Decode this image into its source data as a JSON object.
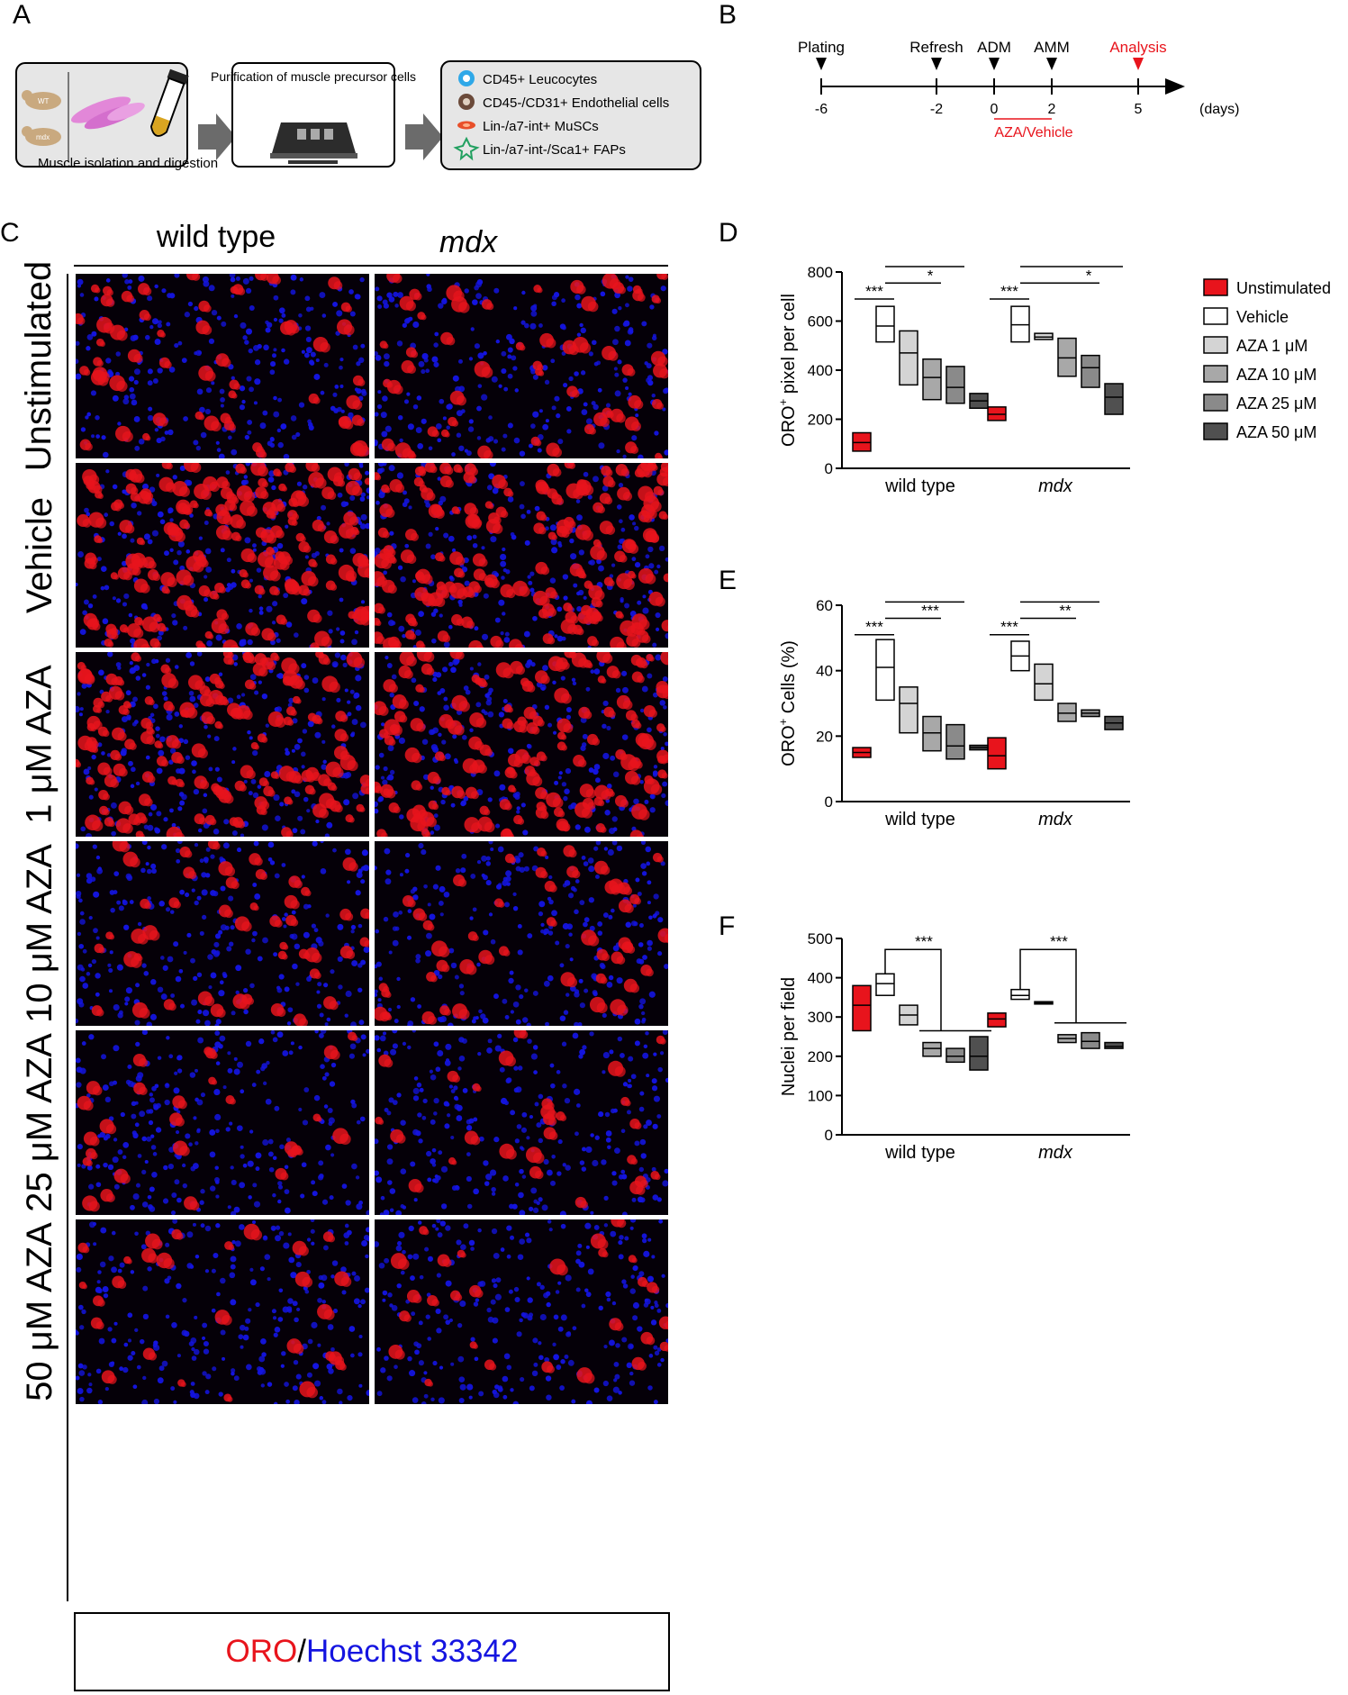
{
  "panel_letters": {
    "a": "A",
    "b": "B",
    "c": "C",
    "d": "D",
    "e": "E",
    "f": "F"
  },
  "panelA": {
    "mouse_wt": "WT",
    "mouse_mdx": "mdx",
    "step1_label": "Muscle isolation and digestion",
    "step2_label": "Purification of muscle precursor cells",
    "populations": [
      {
        "label": "CD45+ Leucocytes",
        "icon": "blue-cell-icon",
        "color": "#2fa8e8"
      },
      {
        "label": "CD45-/CD31+ Endothelial cells",
        "icon": "brown-cell-icon",
        "color": "#6b4a3a"
      },
      {
        "label": "Lin-/a7-int+ MuSCs",
        "icon": "red-elongated-cell-icon",
        "color": "#e8502a"
      },
      {
        "label": "Lin-/a7-int-/Sca1+ FAPs",
        "icon": "green-star-cell-icon",
        "color": "#22a060"
      }
    ]
  },
  "panelB": {
    "events": [
      {
        "label": "Plating",
        "tick": "-6",
        "day": -6,
        "color": "#000000"
      },
      {
        "label": "Refresh",
        "tick": "-2",
        "day": -2,
        "color": "#000000"
      },
      {
        "label": "ADM",
        "tick": "0",
        "day": 0,
        "color": "#000000"
      },
      {
        "label": "AMM",
        "tick": "2",
        "day": 2,
        "color": "#000000"
      },
      {
        "label": "Analysis",
        "tick": "5",
        "day": 5,
        "color": "#e8141c"
      }
    ],
    "unit": "(days)",
    "treatment_label": "AZA/Vehicle",
    "treatment_range": [
      0,
      2
    ],
    "treatment_color": "#e8141c"
  },
  "panelC": {
    "col_headers": [
      "wild type",
      "mdx"
    ],
    "row_labels": [
      "Unstimulated",
      "Vehicle",
      "1 μM AZA",
      "10 μM AZA",
      "25 μM AZA",
      "50 μM AZA"
    ],
    "oro_density_relative": [
      0.35,
      1.0,
      0.85,
      0.3,
      0.18,
      0.18
    ],
    "legend_oro": "ORO",
    "legend_sep": "/",
    "legend_hoechst": "Hoechst 33342",
    "oro_color": "#e8141c",
    "hoechst_color": "#1414e0"
  },
  "legend": [
    {
      "label": "Unstimulated",
      "color": "#e8141c"
    },
    {
      "label": "Vehicle",
      "color": "#ffffff"
    },
    {
      "label": "AZA 1 μM",
      "color": "#d4d4d4"
    },
    {
      "label": "AZA 10 μM",
      "color": "#a8a8a8"
    },
    {
      "label": "AZA 25 μM",
      "color": "#8a8a8a"
    },
    {
      "label": "AZA 50 μM",
      "color": "#505050"
    }
  ],
  "chart_data": [
    {
      "panel": "D",
      "type": "box",
      "ylabel_main": "ORO",
      "ylabel_sup": "+",
      "ylabel_rest": " pixel per cell",
      "ylim": [
        0,
        800
      ],
      "yticks": [
        "0",
        "200",
        "400",
        "600",
        "800"
      ],
      "groups": [
        "wild type",
        "mdx"
      ],
      "group_italic": [
        false,
        true
      ],
      "series": [
        {
          "name": "Unstimulated",
          "boxes": [
            [
              70,
              105,
              145
            ],
            [
              195,
              220,
              250
            ]
          ]
        },
        {
          "name": "Vehicle",
          "boxes": [
            [
              515,
              580,
              660
            ],
            [
              515,
              585,
              660
            ]
          ]
        },
        {
          "name": "AZA 1 μM",
          "boxes": [
            [
              340,
              470,
              560
            ],
            [
              525,
              535,
              550
            ]
          ]
        },
        {
          "name": "AZA 10 μM",
          "boxes": [
            [
              280,
              370,
              445
            ],
            [
              375,
              450,
              530
            ]
          ]
        },
        {
          "name": "AZA 25 μM",
          "boxes": [
            [
              265,
              330,
              415
            ],
            [
              330,
              410,
              460
            ]
          ]
        },
        {
          "name": "AZA 50 μM",
          "boxes": [
            [
              245,
              275,
              305
            ],
            [
              220,
              290,
              345
            ]
          ]
        }
      ],
      "significance": [
        {
          "group": 0,
          "from": 0,
          "to": 1,
          "y": 690,
          "label": "***"
        },
        {
          "group": 0,
          "from": 1,
          "to": 3,
          "y": 755,
          "label": "*"
        },
        {
          "group": 0,
          "from": 1,
          "to": 4,
          "y": 822,
          "label": "**"
        },
        {
          "group": 0,
          "from": 1,
          "to": 5,
          "y": 890,
          "label": "***"
        },
        {
          "group": 1,
          "from": 0,
          "to": 1,
          "y": 690,
          "label": "***"
        },
        {
          "group": 1,
          "from": 1,
          "to": 4,
          "y": 755,
          "label": "*"
        },
        {
          "group": 1,
          "from": 1,
          "to": 5,
          "y": 822,
          "label": "***"
        }
      ]
    },
    {
      "panel": "E",
      "type": "box",
      "ylabel_main": "ORO",
      "ylabel_sup": "+",
      "ylabel_rest": " Cells (%)",
      "ylim": [
        0,
        60
      ],
      "yticks": [
        "0",
        "20",
        "40",
        "60"
      ],
      "groups": [
        "wild type",
        "mdx"
      ],
      "group_italic": [
        false,
        true
      ],
      "series": [
        {
          "name": "Unstimulated",
          "boxes": [
            [
              13.5,
              15,
              16.5
            ],
            [
              10,
              14,
              19.5
            ]
          ]
        },
        {
          "name": "Vehicle",
          "boxes": [
            [
              31,
              41,
              49.5
            ],
            [
              40,
              44.5,
              49
            ]
          ]
        },
        {
          "name": "AZA 1 μM",
          "boxes": [
            [
              21,
              30,
              35
            ],
            [
              31,
              36,
              42
            ]
          ]
        },
        {
          "name": "AZA 10 μM",
          "boxes": [
            [
              15.5,
              21,
              26
            ],
            [
              24.5,
              27,
              30
            ]
          ]
        },
        {
          "name": "AZA 25 μM",
          "boxes": [
            [
              13,
              17,
              23.5
            ],
            [
              26,
              27,
              28
            ]
          ]
        },
        {
          "name": "AZA 50 μM",
          "boxes": [
            [
              15.8,
              16.5,
              17.2
            ],
            [
              22,
              24,
              26
            ]
          ]
        }
      ],
      "significance": [
        {
          "group": 0,
          "from": 0,
          "to": 1,
          "y": 51,
          "label": "***"
        },
        {
          "group": 0,
          "from": 1,
          "to": 3,
          "y": 56,
          "label": "***"
        },
        {
          "group": 0,
          "from": 1,
          "to": 4,
          "y": 61,
          "label": "***"
        },
        {
          "group": 0,
          "from": 1,
          "to": 5,
          "y": 66,
          "label": "***"
        },
        {
          "group": 1,
          "from": 0,
          "to": 1,
          "y": 51,
          "label": "***"
        },
        {
          "group": 1,
          "from": 1,
          "to": 3,
          "y": 56,
          "label": "**"
        },
        {
          "group": 1,
          "from": 1,
          "to": 4,
          "y": 61,
          "label": "**"
        },
        {
          "group": 1,
          "from": 1,
          "to": 5,
          "y": 66,
          "label": "***"
        }
      ]
    },
    {
      "panel": "F",
      "type": "box",
      "ylabel_main": "Nuclei per field",
      "ylabel_sup": "",
      "ylabel_rest": "",
      "ylim": [
        0,
        500
      ],
      "yticks": [
        "0",
        "100",
        "200",
        "300",
        "400",
        "500"
      ],
      "groups": [
        "wild type",
        "mdx"
      ],
      "group_italic": [
        false,
        true
      ],
      "series": [
        {
          "name": "Unstimulated",
          "boxes": [
            [
              265,
              330,
              380
            ],
            [
              275,
              295,
              310
            ]
          ]
        },
        {
          "name": "Vehicle",
          "boxes": [
            [
              355,
              385,
              410
            ],
            [
              345,
              355,
              370
            ]
          ]
        },
        {
          "name": "AZA 1 μM",
          "boxes": [
            [
              280,
              305,
              330
            ],
            [
              333,
              336,
              339
            ]
          ]
        },
        {
          "name": "AZA 10 μM",
          "boxes": [
            [
              200,
              220,
              235
            ],
            [
              235,
              245,
              255
            ]
          ]
        },
        {
          "name": "AZA 25 μM",
          "boxes": [
            [
              185,
              200,
              220
            ],
            [
              220,
              238,
              260
            ]
          ]
        },
        {
          "name": "AZA 50 μM",
          "boxes": [
            [
              165,
              200,
              250
            ],
            [
              220,
              225,
              235
            ]
          ]
        }
      ],
      "brackets": [
        {
          "group": 0,
          "top": 472,
          "bottom": 265,
          "label": "***"
        },
        {
          "group": 1,
          "top": 472,
          "bottom": 285,
          "label": "***"
        }
      ]
    }
  ]
}
